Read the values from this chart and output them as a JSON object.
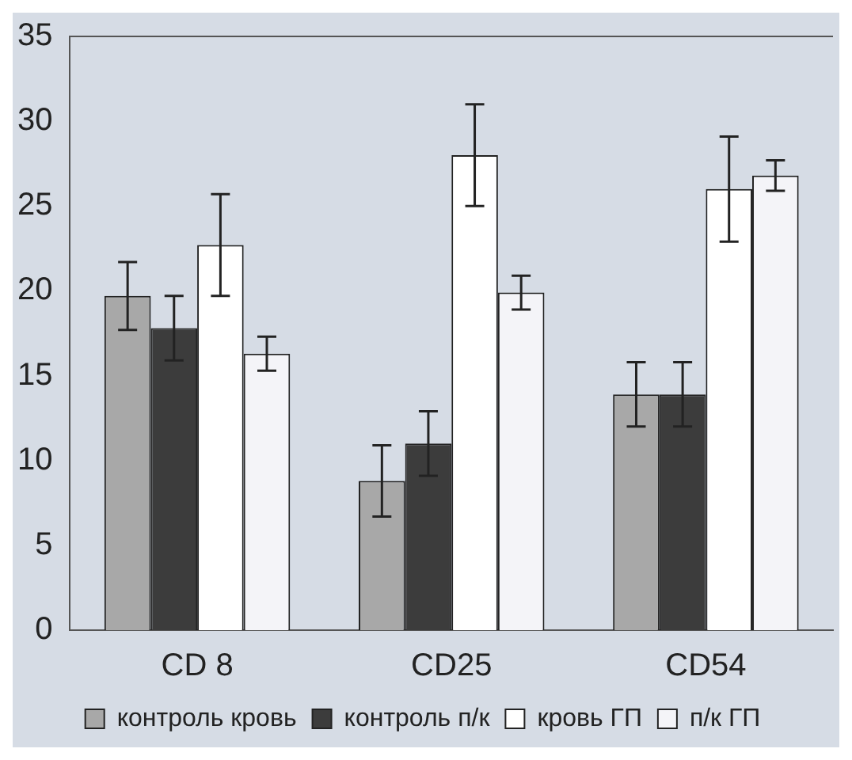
{
  "chart_data": {
    "type": "bar",
    "categories": [
      "CD 8",
      "CD25",
      "CD54"
    ],
    "series": [
      {
        "name": "контроль кровь",
        "color": "#a8a8a8",
        "values": [
          19.7,
          8.8,
          13.9
        ],
        "errors": [
          2,
          2.1,
          1.9
        ]
      },
      {
        "name": "контроль п/к",
        "color": "#3c3c3c",
        "values": [
          17.8,
          11,
          13.9
        ],
        "errors": [
          1.9,
          1.9,
          1.9
        ]
      },
      {
        "name": "кровь ГП",
        "color": "#ffffff",
        "values": [
          22.7,
          28,
          26
        ],
        "errors": [
          3,
          3,
          3.1
        ]
      },
      {
        "name": "п/к ГП",
        "color": "#f4f4f8",
        "values": [
          16.3,
          19.9,
          26.8
        ],
        "errors": [
          1,
          1,
          0.9
        ]
      }
    ],
    "ylim": [
      0,
      35
    ],
    "yticks": [
      0,
      5,
      10,
      15,
      20,
      25,
      30,
      35
    ],
    "grid": false,
    "legend": "bottom"
  }
}
